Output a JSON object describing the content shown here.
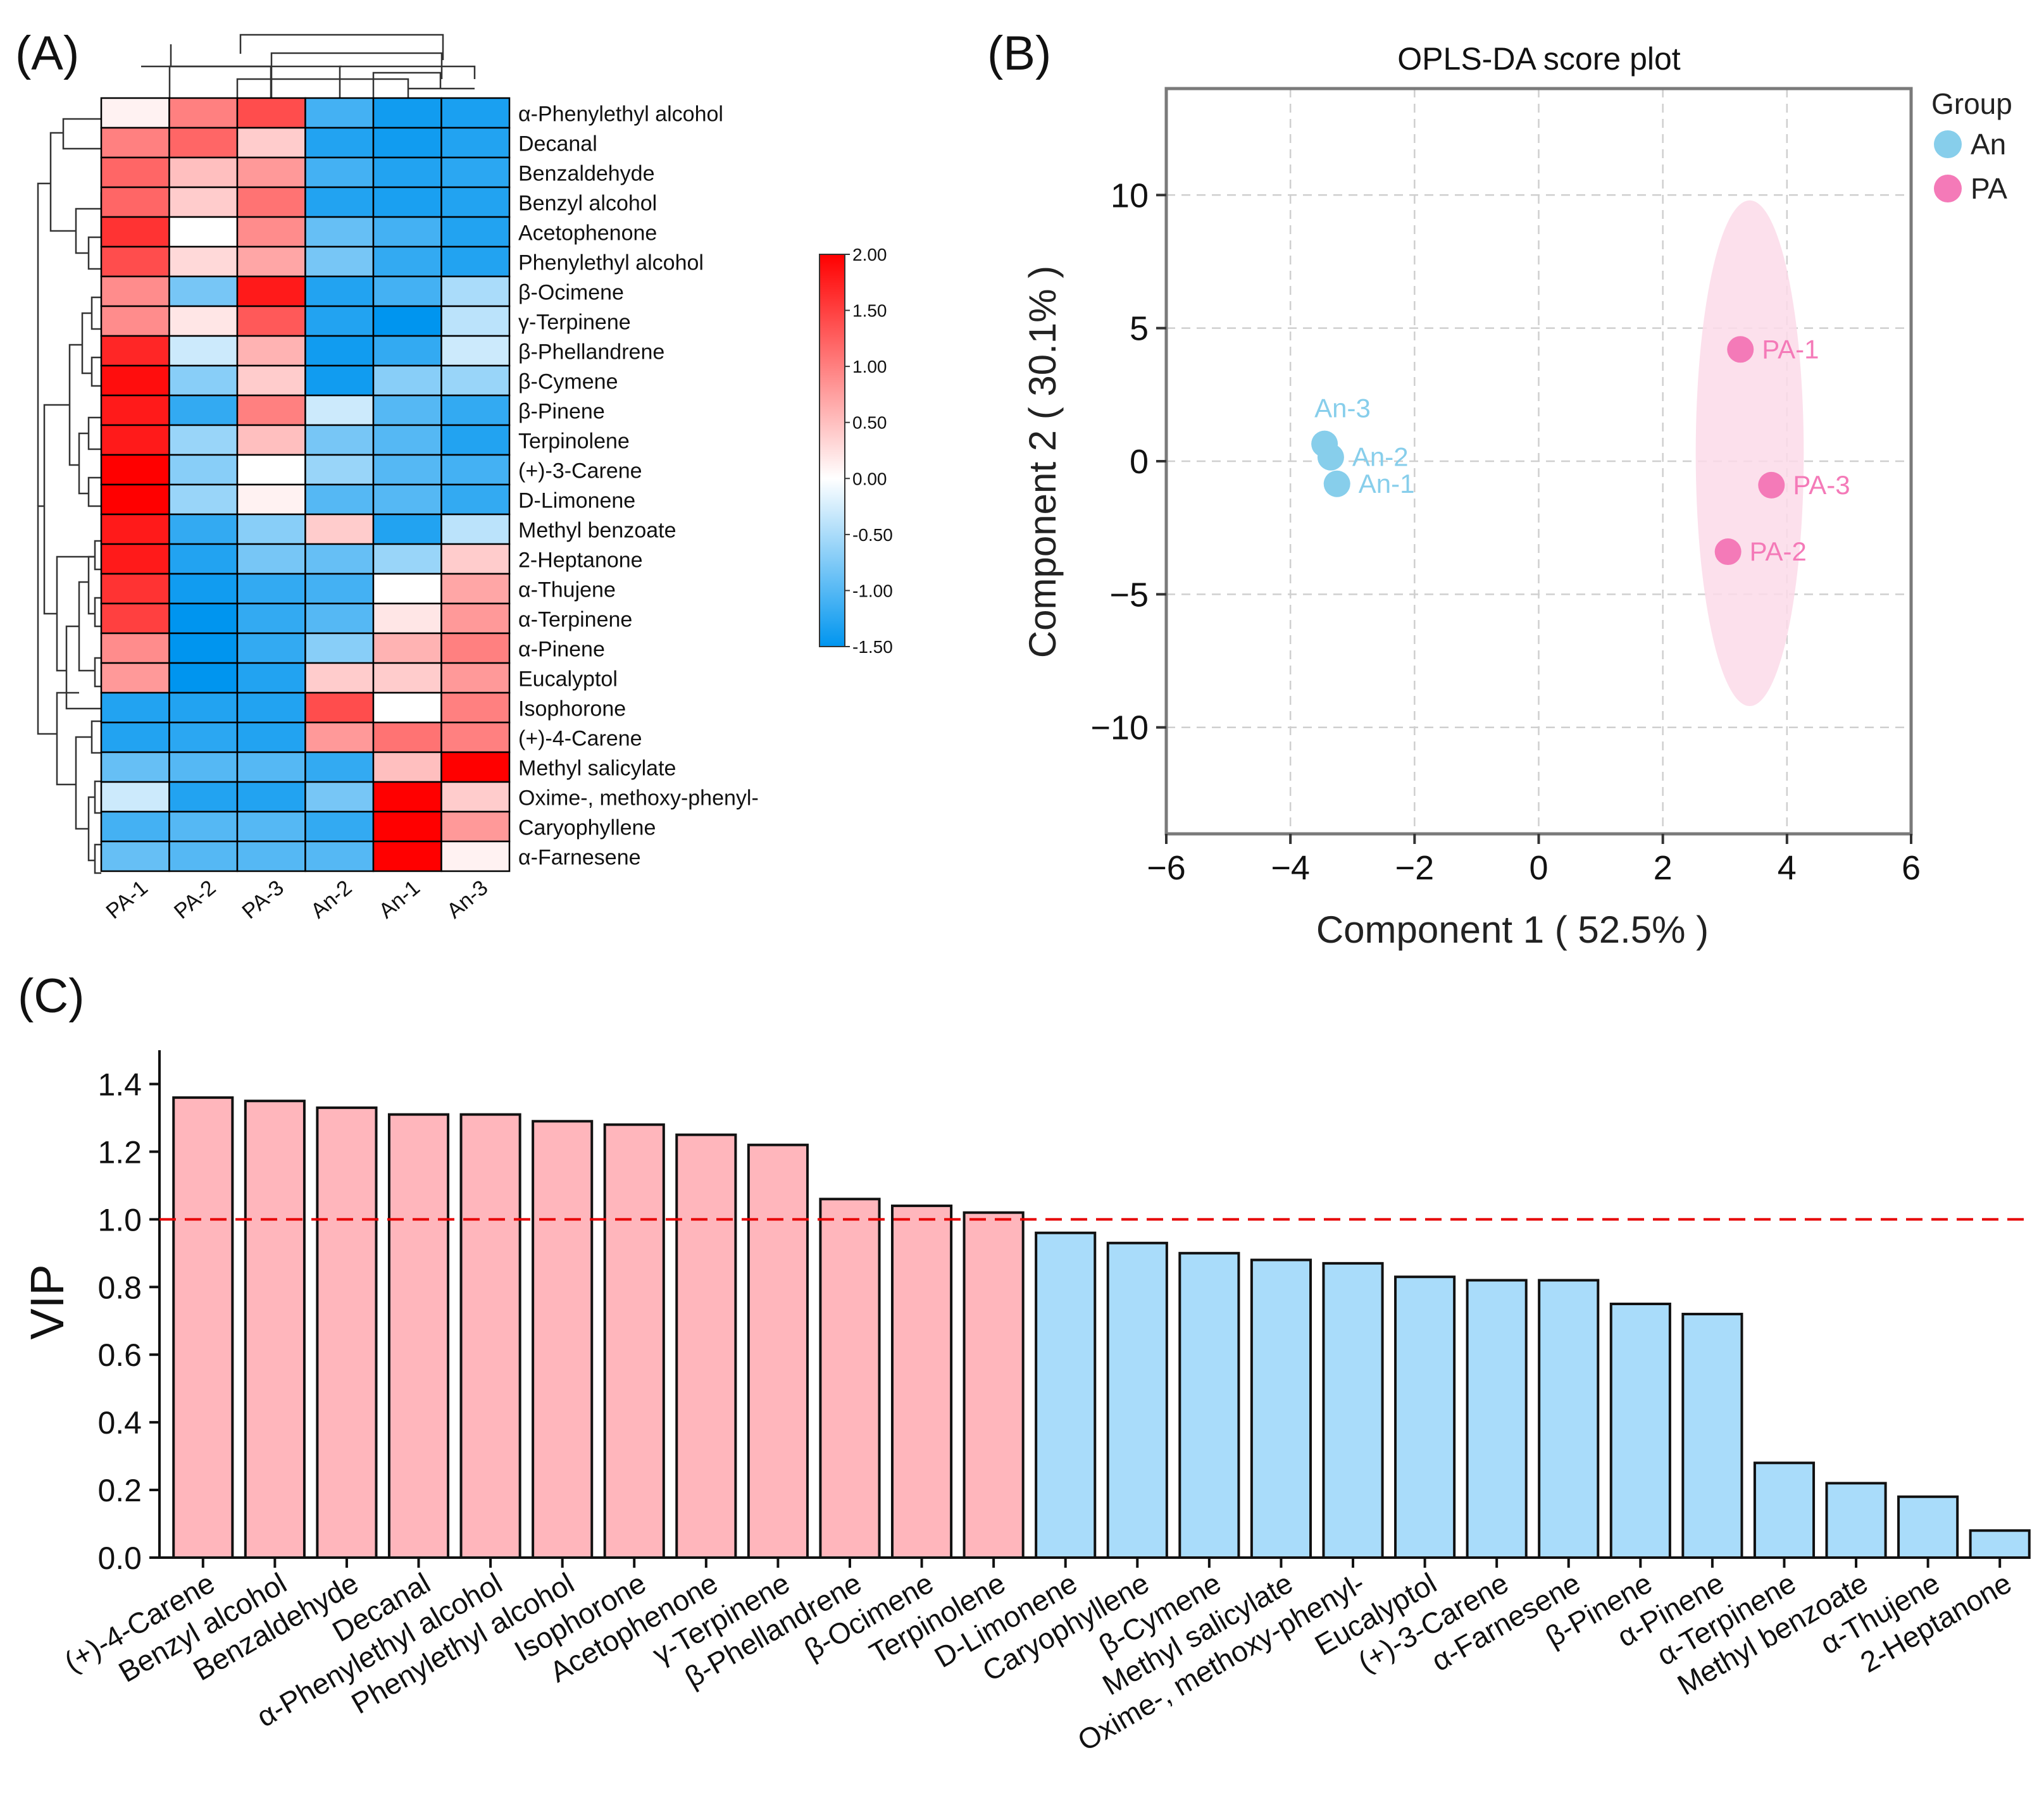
{
  "chart_data": [
    {
      "panel": "(A)",
      "type": "heatmap",
      "columns": [
        "PA-1",
        "PA-2",
        "PA-3",
        "An-2",
        "An-1",
        "An-3"
      ],
      "rows": [
        "α-Phenylethyl alcohol",
        "Decanal",
        "Benzaldehyde",
        "Benzyl alcohol",
        "Acetophenone",
        "Phenylethyl alcohol",
        "β-Ocimene",
        "γ-Terpinene",
        "β-Phellandrene",
        "β-Cymene",
        "β-Pinene",
        "Terpinolene",
        "(+)-3-Carene",
        "D-Limonene",
        "Methyl benzoate",
        "2-Heptanone",
        "α-Thujene",
        "α-Terpinene",
        "α-Pinene",
        "Eucalyptol",
        "Isophorone",
        "(+)-4-Carene",
        "Methyl salicylate",
        "Oxime-, methoxy-phenyl-",
        "Caryophyllene",
        "α-Farnesene"
      ],
      "values": [
        [
          0.1,
          1.0,
          1.4,
          -1.1,
          -1.4,
          -1.35
        ],
        [
          1.0,
          1.2,
          0.4,
          -1.3,
          -1.4,
          -1.3
        ],
        [
          1.2,
          0.5,
          0.8,
          -1.1,
          -1.3,
          -1.25
        ],
        [
          1.2,
          0.4,
          1.1,
          -1.3,
          -1.35,
          -1.3
        ],
        [
          1.6,
          0.0,
          0.9,
          -0.9,
          -1.1,
          -1.3
        ],
        [
          1.4,
          0.3,
          0.7,
          -0.8,
          -1.2,
          -1.3
        ],
        [
          0.9,
          -0.8,
          1.8,
          -1.3,
          -1.1,
          -0.5
        ],
        [
          0.9,
          0.2,
          1.3,
          -1.3,
          -1.55,
          -0.4
        ],
        [
          1.7,
          -0.3,
          0.6,
          -1.4,
          -1.2,
          -0.3
        ],
        [
          1.9,
          -0.7,
          0.4,
          -1.4,
          -0.7,
          -0.6
        ],
        [
          1.8,
          -1.2,
          1.0,
          -0.3,
          -1.0,
          -1.2
        ],
        [
          1.8,
          -0.6,
          0.5,
          -0.8,
          -1.0,
          -1.3
        ],
        [
          2.0,
          -0.7,
          0.0,
          -0.6,
          -1.0,
          -1.1
        ],
        [
          2.0,
          -0.6,
          0.1,
          -1.0,
          -1.0,
          -1.2
        ],
        [
          1.8,
          -1.2,
          -0.7,
          0.4,
          -1.3,
          -0.4
        ],
        [
          1.8,
          -1.3,
          -0.8,
          -0.9,
          -0.6,
          0.4
        ],
        [
          1.6,
          -1.4,
          -1.2,
          -1.1,
          0.0,
          0.7
        ],
        [
          1.5,
          -1.5,
          -1.2,
          -1.0,
          0.2,
          0.8
        ],
        [
          0.9,
          -1.55,
          -1.2,
          -0.7,
          0.6,
          1.0
        ],
        [
          0.8,
          -1.55,
          -1.3,
          0.4,
          0.4,
          0.8
        ],
        [
          -1.3,
          -1.3,
          -1.3,
          1.4,
          0.0,
          1.0
        ],
        [
          -1.3,
          -1.25,
          -1.3,
          0.8,
          1.1,
          1.0
        ],
        [
          -0.9,
          -1.0,
          -1.0,
          -1.2,
          0.5,
          2.0
        ],
        [
          -0.3,
          -1.3,
          -1.3,
          -0.8,
          2.0,
          0.4
        ],
        [
          -1.1,
          -1.0,
          -1.0,
          -1.2,
          2.0,
          0.8
        ],
        [
          -0.9,
          -1.0,
          -1.0,
          -1.0,
          2.0,
          0.1
        ]
      ],
      "colorbar": {
        "ticks": [
          "2.00",
          "1.50",
          "1.00",
          "0.50",
          "0.00",
          "-0.50",
          "-1.00",
          "-1.50"
        ],
        "min": -1.5,
        "max": 2.0,
        "low": "#0095ef",
        "mid": "#ffffff",
        "high": "#ff0000"
      }
    },
    {
      "panel": "(B)",
      "type": "scatter",
      "title": "OPLS-DA score plot",
      "xlabel": "Component 1 ( 52.5% )",
      "ylabel": "Component 2 ( 30.1% )",
      "xlim": [
        -6,
        6
      ],
      "ylim": [
        -14,
        14
      ],
      "xticks": [
        -6,
        -4,
        -2,
        0,
        2,
        4,
        6
      ],
      "yticks": [
        -10,
        -5,
        0,
        5,
        10
      ],
      "xtick_labels": [
        "−6",
        "−4",
        "−2",
        "0",
        "2",
        "4",
        "6"
      ],
      "ytick_labels": [
        "−10",
        "−5",
        "0",
        "5",
        "10"
      ],
      "legend_title": "Group",
      "series": [
        {
          "name": "An",
          "color": "#87ceeb",
          "points": [
            {
              "label": "An-3",
              "x": -3.45,
              "y": 0.65
            },
            {
              "label": "An-2",
              "x": -3.35,
              "y": 0.15
            },
            {
              "label": "An-1",
              "x": -3.25,
              "y": -0.85
            }
          ]
        },
        {
          "name": "PA",
          "color": "#f47ab8",
          "ellipse_color": "#fcdbe9",
          "ellipse": {
            "cx": 3.4,
            "cy": 0.3,
            "rx": 0.87,
            "ry": 9.5
          },
          "points": [
            {
              "label": "PA-1",
              "x": 3.25,
              "y": 4.2
            },
            {
              "label": "PA-3",
              "x": 3.75,
              "y": -0.9
            },
            {
              "label": "PA-2",
              "x": 3.05,
              "y": -3.4
            }
          ]
        }
      ]
    },
    {
      "panel": "(C)",
      "type": "bar",
      "ylabel": "VIP",
      "ylim": [
        0,
        1.5
      ],
      "yticks": [
        0.0,
        0.2,
        0.4,
        0.6,
        0.8,
        1.0,
        1.2,
        1.4
      ],
      "ytick_labels": [
        "0.0",
        "0.2",
        "0.4",
        "0.6",
        "0.8",
        "1.0",
        "1.2",
        "1.4"
      ],
      "threshold": 1.0,
      "threshold_color": "#e60000",
      "colors": {
        "above": "#ffb6bc",
        "below": "#a9dcfa"
      },
      "categories": [
        "(+)-4-Carene",
        "Benzyl alcohol",
        "Benzaldehyde",
        "Decanal",
        "α-Phenylethyl alcohol",
        "Phenylethyl alcohol",
        "Isophorone",
        "Acetophenone",
        "γ-Terpinene",
        "β-Phellandrene",
        "β-Ocimene",
        "Terpinolene",
        "D-Limonene",
        "Caryophyllene",
        "β-Cymene",
        "Methyl salicylate",
        "Oxime-, methoxy-phenyl-",
        "Eucalyptol",
        "(+)-3-Carene",
        "α-Farnesene",
        "β-Pinene",
        "α-Pinene",
        "α-Terpinene",
        "Methyl benzoate",
        "α-Thujene",
        "2-Heptanone"
      ],
      "values": [
        1.36,
        1.35,
        1.33,
        1.31,
        1.31,
        1.29,
        1.28,
        1.25,
        1.22,
        1.06,
        1.04,
        1.02,
        0.96,
        0.93,
        0.9,
        0.88,
        0.87,
        0.83,
        0.82,
        0.82,
        0.75,
        0.72,
        0.28,
        0.22,
        0.18,
        0.08
      ]
    }
  ],
  "panel_labels": {
    "a": "(A)",
    "b": "(B)",
    "c": "(C)"
  }
}
